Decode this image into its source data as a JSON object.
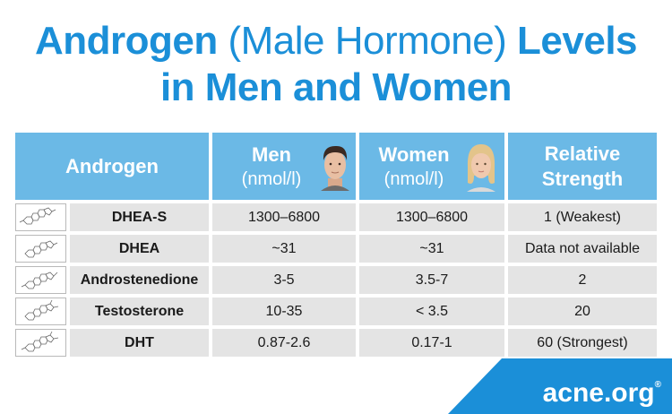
{
  "title": {
    "line1_a": "Androgen",
    "line1_b": " (Male Hormone) ",
    "line1_c": "Levels",
    "line2": "in Men and Women"
  },
  "header": {
    "androgen": "Androgen",
    "men": "Men",
    "men_unit": "(nmol/l)",
    "women": "Women",
    "women_unit": "(nmol/l)",
    "strength_line1": "Relative",
    "strength_line2": "Strength"
  },
  "rows": [
    {
      "name": "DHEA-S",
      "men": "1300–6800",
      "women": "1300–6800",
      "strength": "1",
      "strength_note": " (Weakest)"
    },
    {
      "name": "DHEA",
      "men": "~31",
      "women": "~31",
      "strength": "Data not available",
      "strength_note": ""
    },
    {
      "name": "Androstenedione",
      "men": "3-5",
      "women": "3.5-7",
      "strength": "2",
      "strength_note": ""
    },
    {
      "name": "Testosterone",
      "men": "10-35",
      "women": "< 3.5",
      "strength": "20",
      "strength_note": ""
    },
    {
      "name": "DHT",
      "men": "0.87-2.6",
      "women": "0.17-1",
      "strength": "60",
      "strength_note": " (Strongest)"
    }
  ],
  "footer": {
    "brand": "acne.org",
    "mark": "®"
  },
  "icons": {
    "molecule": "steroid-molecule-icon",
    "man": "man-face-icon",
    "woman": "woman-face-icon"
  }
}
